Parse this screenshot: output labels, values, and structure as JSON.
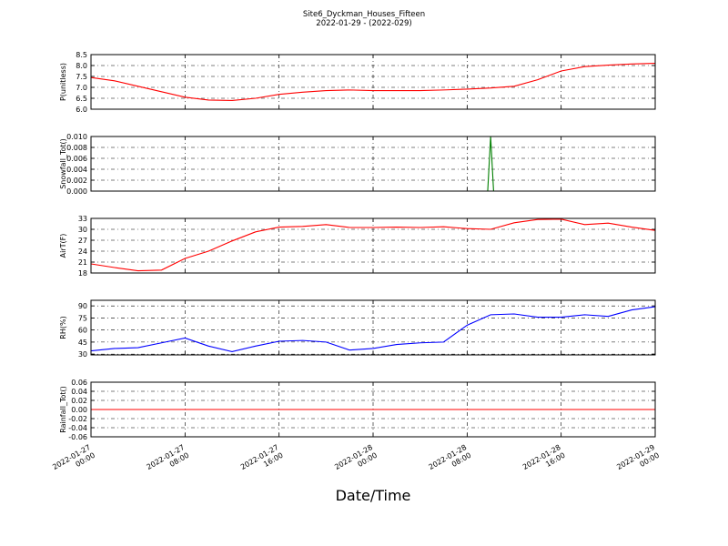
{
  "title": "Site6_Dyckman_Houses_Fifteen",
  "subtitle": "2022-01-29 - (2022-029)",
  "xlabel": "Date/Time",
  "chart_data": [
    {
      "type": "line",
      "ylabel": "P(unitless)",
      "color": "#ff0000",
      "x": [
        "2022-01-27 00:00",
        "2022-01-27 02:00",
        "2022-01-27 04:00",
        "2022-01-27 06:00",
        "2022-01-27 08:00",
        "2022-01-27 10:00",
        "2022-01-27 12:00",
        "2022-01-27 14:00",
        "2022-01-27 16:00",
        "2022-01-27 18:00",
        "2022-01-27 20:00",
        "2022-01-27 22:00",
        "2022-01-28 00:00",
        "2022-01-28 02:00",
        "2022-01-28 04:00",
        "2022-01-28 06:00",
        "2022-01-28 08:00",
        "2022-01-28 10:00",
        "2022-01-28 12:00",
        "2022-01-28 14:00",
        "2022-01-28 16:00",
        "2022-01-28 18:00",
        "2022-01-28 20:00",
        "2022-01-28 22:00",
        "2022-01-29 00:00"
      ],
      "values": [
        7.45,
        7.3,
        7.05,
        6.8,
        6.55,
        6.42,
        6.4,
        6.5,
        6.68,
        6.78,
        6.85,
        6.88,
        6.85,
        6.85,
        6.85,
        6.88,
        6.92,
        6.97,
        7.05,
        7.35,
        7.75,
        7.95,
        8.02,
        8.07,
        8.1
      ],
      "ylim": [
        6.0,
        8.5
      ],
      "yticks": [
        {
          "value": 6.0,
          "label": "6.0"
        },
        {
          "value": 6.5,
          "label": "6.5"
        },
        {
          "value": 7.0,
          "label": "7.0"
        },
        {
          "value": 7.5,
          "label": "7.5"
        },
        {
          "value": 8.0,
          "label": "8.0"
        },
        {
          "value": 8.5,
          "label": "8.5"
        }
      ],
      "grid": true
    },
    {
      "type": "line",
      "ylabel": "Snowfall_Tot()",
      "color": "#007f00",
      "x": [
        "2022-01-27 00:00",
        "2022-01-27 08:00",
        "2022-01-27 16:00",
        "2022-01-28 00:00",
        "2022-01-28 08:00",
        "2022-01-28 09:45",
        "2022-01-28 10:00",
        "2022-01-28 10:15",
        "2022-01-28 16:00",
        "2022-01-29 00:00"
      ],
      "values": [
        0,
        0,
        0,
        0,
        0,
        0,
        0.01,
        0,
        0,
        0
      ],
      "ylim": [
        0,
        0.01
      ],
      "yticks": [
        {
          "value": 0,
          "label": "0.000"
        },
        {
          "value": 0.002,
          "label": "0.002"
        },
        {
          "value": 0.004,
          "label": "0.004"
        },
        {
          "value": 0.006,
          "label": "0.006"
        },
        {
          "value": 0.008,
          "label": "0.008"
        },
        {
          "value": 0.01,
          "label": "0.010"
        }
      ],
      "grid": true
    },
    {
      "type": "line",
      "ylabel": "AirT(F)",
      "color": "#ff0000",
      "x": [
        "2022-01-27 00:00",
        "2022-01-27 02:00",
        "2022-01-27 04:00",
        "2022-01-27 06:00",
        "2022-01-27 08:00",
        "2022-01-27 10:00",
        "2022-01-27 12:00",
        "2022-01-27 14:00",
        "2022-01-27 16:00",
        "2022-01-27 18:00",
        "2022-01-27 20:00",
        "2022-01-27 22:00",
        "2022-01-28 00:00",
        "2022-01-28 02:00",
        "2022-01-28 04:00",
        "2022-01-28 06:00",
        "2022-01-28 08:00",
        "2022-01-28 10:00",
        "2022-01-28 12:00",
        "2022-01-28 14:00",
        "2022-01-28 16:00",
        "2022-01-28 18:00",
        "2022-01-28 20:00",
        "2022-01-28 22:00",
        "2022-01-29 00:00"
      ],
      "values": [
        20.5,
        19.5,
        18.6,
        18.8,
        22,
        24,
        26.8,
        29.3,
        30.6,
        30.8,
        31.3,
        30.5,
        30.5,
        30.6,
        30.5,
        30.7,
        30.2,
        30,
        31.8,
        32.7,
        32.8,
        31.3,
        31.7,
        30.6,
        29.7
      ],
      "ylim": [
        18,
        33
      ],
      "yticks": [
        18,
        21,
        24,
        27,
        30,
        33
      ],
      "grid": true
    },
    {
      "type": "line",
      "ylabel": "RH(%)",
      "color": "#0000ff",
      "x": [
        "2022-01-27 00:00",
        "2022-01-27 02:00",
        "2022-01-27 04:00",
        "2022-01-27 06:00",
        "2022-01-27 08:00",
        "2022-01-27 10:00",
        "2022-01-27 12:00",
        "2022-01-27 14:00",
        "2022-01-27 16:00",
        "2022-01-27 18:00",
        "2022-01-27 20:00",
        "2022-01-27 22:00",
        "2022-01-28 00:00",
        "2022-01-28 02:00",
        "2022-01-28 04:00",
        "2022-01-28 06:00",
        "2022-01-28 08:00",
        "2022-01-28 10:00",
        "2022-01-28 12:00",
        "2022-01-28 14:00",
        "2022-01-28 16:00",
        "2022-01-28 18:00",
        "2022-01-28 20:00",
        "2022-01-28 22:00",
        "2022-01-29 00:00"
      ],
      "values": [
        34,
        37,
        38,
        44,
        50,
        40,
        33,
        40,
        46,
        47,
        45,
        35,
        37,
        42,
        44,
        45,
        66,
        79,
        80,
        76,
        76,
        79,
        77,
        85,
        89
      ],
      "ylim": [
        29,
        97
      ],
      "yticks": [
        30,
        45,
        60,
        75,
        90
      ],
      "grid": true
    },
    {
      "type": "line",
      "ylabel": "Rainfall_Tot()",
      "color": "#ff0000",
      "x": [
        "2022-01-27 00:00",
        "2022-01-29 00:00"
      ],
      "values": [
        0,
        0
      ],
      "ylim": [
        -0.06,
        0.06
      ],
      "yticks": [
        {
          "value": -0.06,
          "label": "-0.06"
        },
        {
          "value": -0.04,
          "label": "-0.04"
        },
        {
          "value": -0.02,
          "label": "-0.02"
        },
        {
          "value": 0,
          "label": "0.00"
        },
        {
          "value": 0.02,
          "label": "0.02"
        },
        {
          "value": 0.04,
          "label": "0.04"
        },
        {
          "value": 0.06,
          "label": "0.06"
        }
      ],
      "grid": true,
      "xlim": [
        "2022-01-27 00:00",
        "2022-01-29 00:00"
      ],
      "xticks": [
        "2022-01-27 00:00",
        "2022-01-27 08:00",
        "2022-01-27 16:00",
        "2022-01-28 00:00",
        "2022-01-28 08:00",
        "2022-01-28 16:00",
        "2022-01-29 00:00"
      ]
    }
  ]
}
